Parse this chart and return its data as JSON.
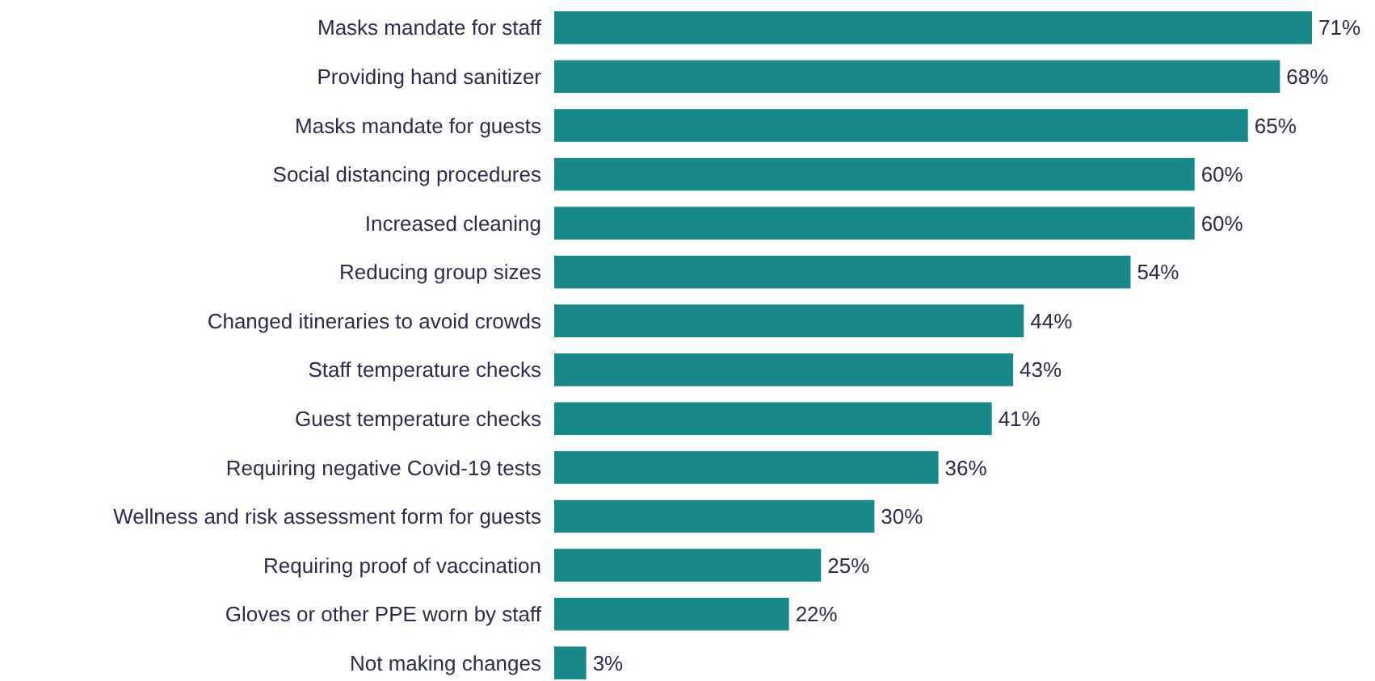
{
  "chart_data": {
    "type": "bar",
    "orientation": "horizontal",
    "data_labels": true,
    "color": "#17898a",
    "categories": [
      "Masks mandate for staff",
      "Providing hand sanitizer",
      "Masks mandate for guests",
      "Social distancing procedures",
      "Increased cleaning",
      "Reducing group sizes",
      "Changed itineraries to avoid crowds",
      "Staff temperature checks",
      "Guest temperature checks",
      "Requiring negative Covid-19 tests",
      "Wellness and risk assessment form for guests",
      "Requiring proof of vaccination",
      "Gloves or other PPE worn by staff",
      "Not making changes"
    ],
    "values": [
      71,
      68,
      65,
      60,
      60,
      54,
      44,
      43,
      41,
      36,
      30,
      25,
      22,
      3
    ],
    "value_labels": [
      "71%",
      "68%",
      "65%",
      "60%",
      "60%",
      "54%",
      "44%",
      "43%",
      "41%",
      "36%",
      "30%",
      "25%",
      "22%",
      "3%"
    ]
  }
}
